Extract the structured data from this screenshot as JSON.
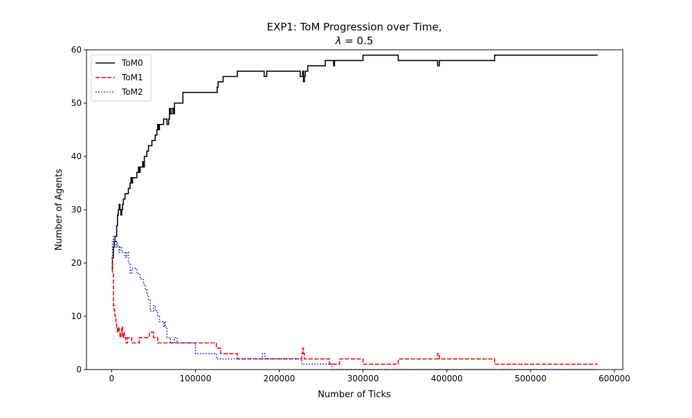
{
  "chart_data": {
    "type": "line",
    "title_line1": "EXP1: ToM Progression over Time,",
    "title_line2_symbol": "λ",
    "title_line2_rest": " = 0.5",
    "xlabel": "Number of Ticks",
    "ylabel": "Number of Agents",
    "xlim": [
      -30000,
      610000
    ],
    "ylim": [
      0,
      60
    ],
    "xticks": [
      0,
      100000,
      200000,
      300000,
      400000,
      500000,
      600000
    ],
    "xtick_labels": [
      "0",
      "100000",
      "200000",
      "300000",
      "400000",
      "500000",
      "600000"
    ],
    "yticks": [
      0,
      10,
      20,
      30,
      40,
      50,
      60
    ],
    "ytick_labels": [
      "0",
      "10",
      "20",
      "30",
      "40",
      "50",
      "60"
    ],
    "grid": false,
    "legend_position": "top-left",
    "series": [
      {
        "name": "ToM0",
        "color": "#000000",
        "dash": "solid",
        "points": [
          [
            0,
            19
          ],
          [
            1000,
            21
          ],
          [
            2000,
            23
          ],
          [
            3000,
            24
          ],
          [
            4000,
            25
          ],
          [
            5000,
            25
          ],
          [
            6000,
            27
          ],
          [
            7000,
            29
          ],
          [
            8000,
            30
          ],
          [
            9000,
            31
          ],
          [
            10000,
            30
          ],
          [
            11000,
            29
          ],
          [
            12000,
            30
          ],
          [
            13000,
            31
          ],
          [
            14000,
            32
          ],
          [
            16000,
            33
          ],
          [
            18000,
            33
          ],
          [
            20000,
            34
          ],
          [
            22000,
            35
          ],
          [
            23000,
            36
          ],
          [
            24000,
            35
          ],
          [
            25000,
            36
          ],
          [
            28000,
            36
          ],
          [
            30000,
            37
          ],
          [
            32000,
            38
          ],
          [
            33000,
            37
          ],
          [
            34000,
            38
          ],
          [
            36000,
            38
          ],
          [
            37000,
            39
          ],
          [
            38000,
            38
          ],
          [
            39000,
            40
          ],
          [
            42000,
            41
          ],
          [
            44000,
            42
          ],
          [
            48000,
            43
          ],
          [
            52000,
            44
          ],
          [
            54000,
            45
          ],
          [
            55000,
            46
          ],
          [
            56000,
            45
          ],
          [
            57000,
            46
          ],
          [
            62000,
            47
          ],
          [
            65000,
            47
          ],
          [
            66000,
            46
          ],
          [
            68000,
            47
          ],
          [
            69000,
            49
          ],
          [
            70000,
            48
          ],
          [
            72000,
            49
          ],
          [
            74000,
            48
          ],
          [
            75000,
            50
          ],
          [
            80000,
            50
          ],
          [
            85000,
            52
          ],
          [
            100000,
            52
          ],
          [
            126000,
            53
          ],
          [
            127000,
            54
          ],
          [
            133000,
            55
          ],
          [
            150000,
            56
          ],
          [
            174000,
            56
          ],
          [
            182000,
            55
          ],
          [
            185000,
            56
          ],
          [
            225000,
            55
          ],
          [
            228000,
            56
          ],
          [
            229000,
            54
          ],
          [
            230000,
            55
          ],
          [
            231000,
            56
          ],
          [
            234000,
            57
          ],
          [
            255000,
            58
          ],
          [
            265000,
            57
          ],
          [
            266000,
            58
          ],
          [
            300000,
            59
          ],
          [
            340000,
            59
          ],
          [
            342000,
            58
          ],
          [
            388000,
            58
          ],
          [
            389000,
            57
          ],
          [
            391000,
            58
          ],
          [
            455000,
            58
          ],
          [
            457000,
            59
          ],
          [
            580000,
            59
          ]
        ]
      },
      {
        "name": "ToM1",
        "color": "#ff0000",
        "dash": "dashed",
        "points": [
          [
            0,
            21
          ],
          [
            1000,
            18
          ],
          [
            2000,
            12
          ],
          [
            3000,
            11
          ],
          [
            4000,
            10
          ],
          [
            5000,
            9
          ],
          [
            6000,
            8
          ],
          [
            7000,
            7
          ],
          [
            8000,
            8
          ],
          [
            9000,
            7
          ],
          [
            10000,
            6
          ],
          [
            11000,
            7
          ],
          [
            12000,
            8
          ],
          [
            13000,
            6
          ],
          [
            14000,
            7
          ],
          [
            15000,
            6
          ],
          [
            17000,
            5
          ],
          [
            19000,
            6
          ],
          [
            22000,
            6
          ],
          [
            24000,
            5
          ],
          [
            26000,
            5
          ],
          [
            32000,
            5
          ],
          [
            33000,
            6
          ],
          [
            35000,
            6
          ],
          [
            45000,
            7
          ],
          [
            50000,
            6
          ],
          [
            55000,
            5
          ],
          [
            57000,
            5
          ],
          [
            80000,
            5
          ],
          [
            100000,
            5
          ],
          [
            125000,
            4
          ],
          [
            130000,
            3
          ],
          [
            150000,
            2
          ],
          [
            175000,
            2
          ],
          [
            225000,
            2
          ],
          [
            227000,
            3
          ],
          [
            228000,
            4
          ],
          [
            229000,
            3
          ],
          [
            230000,
            2
          ],
          [
            258000,
            2
          ],
          [
            260000,
            1
          ],
          [
            272000,
            2
          ],
          [
            300000,
            1
          ],
          [
            340000,
            1
          ],
          [
            342000,
            2
          ],
          [
            388000,
            2
          ],
          [
            389000,
            3
          ],
          [
            391000,
            2
          ],
          [
            455000,
            2
          ],
          [
            457000,
            1
          ],
          [
            580000,
            1
          ]
        ]
      },
      {
        "name": "ToM2",
        "color": "#0000ff",
        "dash": "dotted",
        "points": [
          [
            0,
            21
          ],
          [
            1000,
            24
          ],
          [
            2000,
            25
          ],
          [
            3000,
            25
          ],
          [
            4000,
            24
          ],
          [
            5000,
            23
          ],
          [
            6000,
            24
          ],
          [
            7000,
            23
          ],
          [
            8000,
            23
          ],
          [
            9000,
            22
          ],
          [
            10000,
            23
          ],
          [
            12000,
            22
          ],
          [
            14000,
            22
          ],
          [
            16000,
            21
          ],
          [
            18000,
            22
          ],
          [
            20000,
            20
          ],
          [
            22000,
            18
          ],
          [
            24000,
            19
          ],
          [
            26000,
            19
          ],
          [
            30000,
            18
          ],
          [
            32000,
            18
          ],
          [
            34000,
            17
          ],
          [
            36000,
            17
          ],
          [
            38000,
            16
          ],
          [
            40000,
            15
          ],
          [
            42000,
            14
          ],
          [
            44000,
            13
          ],
          [
            46000,
            11
          ],
          [
            48000,
            11
          ],
          [
            50000,
            12
          ],
          [
            52000,
            11
          ],
          [
            55000,
            10
          ],
          [
            57000,
            9
          ],
          [
            60000,
            9
          ],
          [
            62000,
            8
          ],
          [
            63000,
            9
          ],
          [
            64000,
            8
          ],
          [
            66000,
            6
          ],
          [
            70000,
            5
          ],
          [
            75000,
            6
          ],
          [
            78000,
            5
          ],
          [
            80000,
            5
          ],
          [
            100000,
            3
          ],
          [
            120000,
            3
          ],
          [
            125000,
            2
          ],
          [
            140000,
            2
          ],
          [
            175000,
            2
          ],
          [
            180000,
            3
          ],
          [
            183000,
            2
          ],
          [
            225000,
            2
          ],
          [
            227000,
            1
          ],
          [
            240000,
            1
          ],
          [
            262000,
            1
          ],
          [
            263000,
            0
          ],
          [
            580000,
            0
          ]
        ]
      }
    ]
  }
}
